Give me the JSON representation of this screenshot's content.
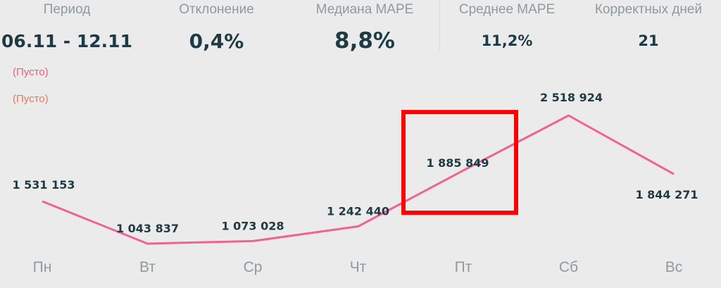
{
  "kpis": [
    {
      "label": "Период",
      "value": "06.11 - 12.11"
    },
    {
      "label": "Отклонение",
      "value": "0,4%"
    },
    {
      "label": "Медиана MAPE",
      "value": "8,8%"
    },
    {
      "label": "Среднее MAPE",
      "value": "11,2%"
    },
    {
      "label": "Корректных дней",
      "value": "21"
    }
  ],
  "legend": {
    "empty_1": "(Пусто)",
    "empty_2": "(Пусто)"
  },
  "colors": {
    "line": "#f06292",
    "highlight": "#ff0000"
  },
  "chart_data": {
    "type": "line",
    "categories": [
      "Пн",
      "Вт",
      "Ср",
      "Чт",
      "Пт",
      "Сб",
      "Вс"
    ],
    "values": [
      1531153,
      1043837,
      1073028,
      1242440,
      1885849,
      2518924,
      1844271
    ],
    "value_labels": [
      "1 531 153",
      "1 043 837",
      "1 073 028",
      "1 242 440",
      "1 885 849",
      "2 518 924",
      "1 844 271"
    ],
    "highlighted_category": "Пт",
    "grid": false
  }
}
